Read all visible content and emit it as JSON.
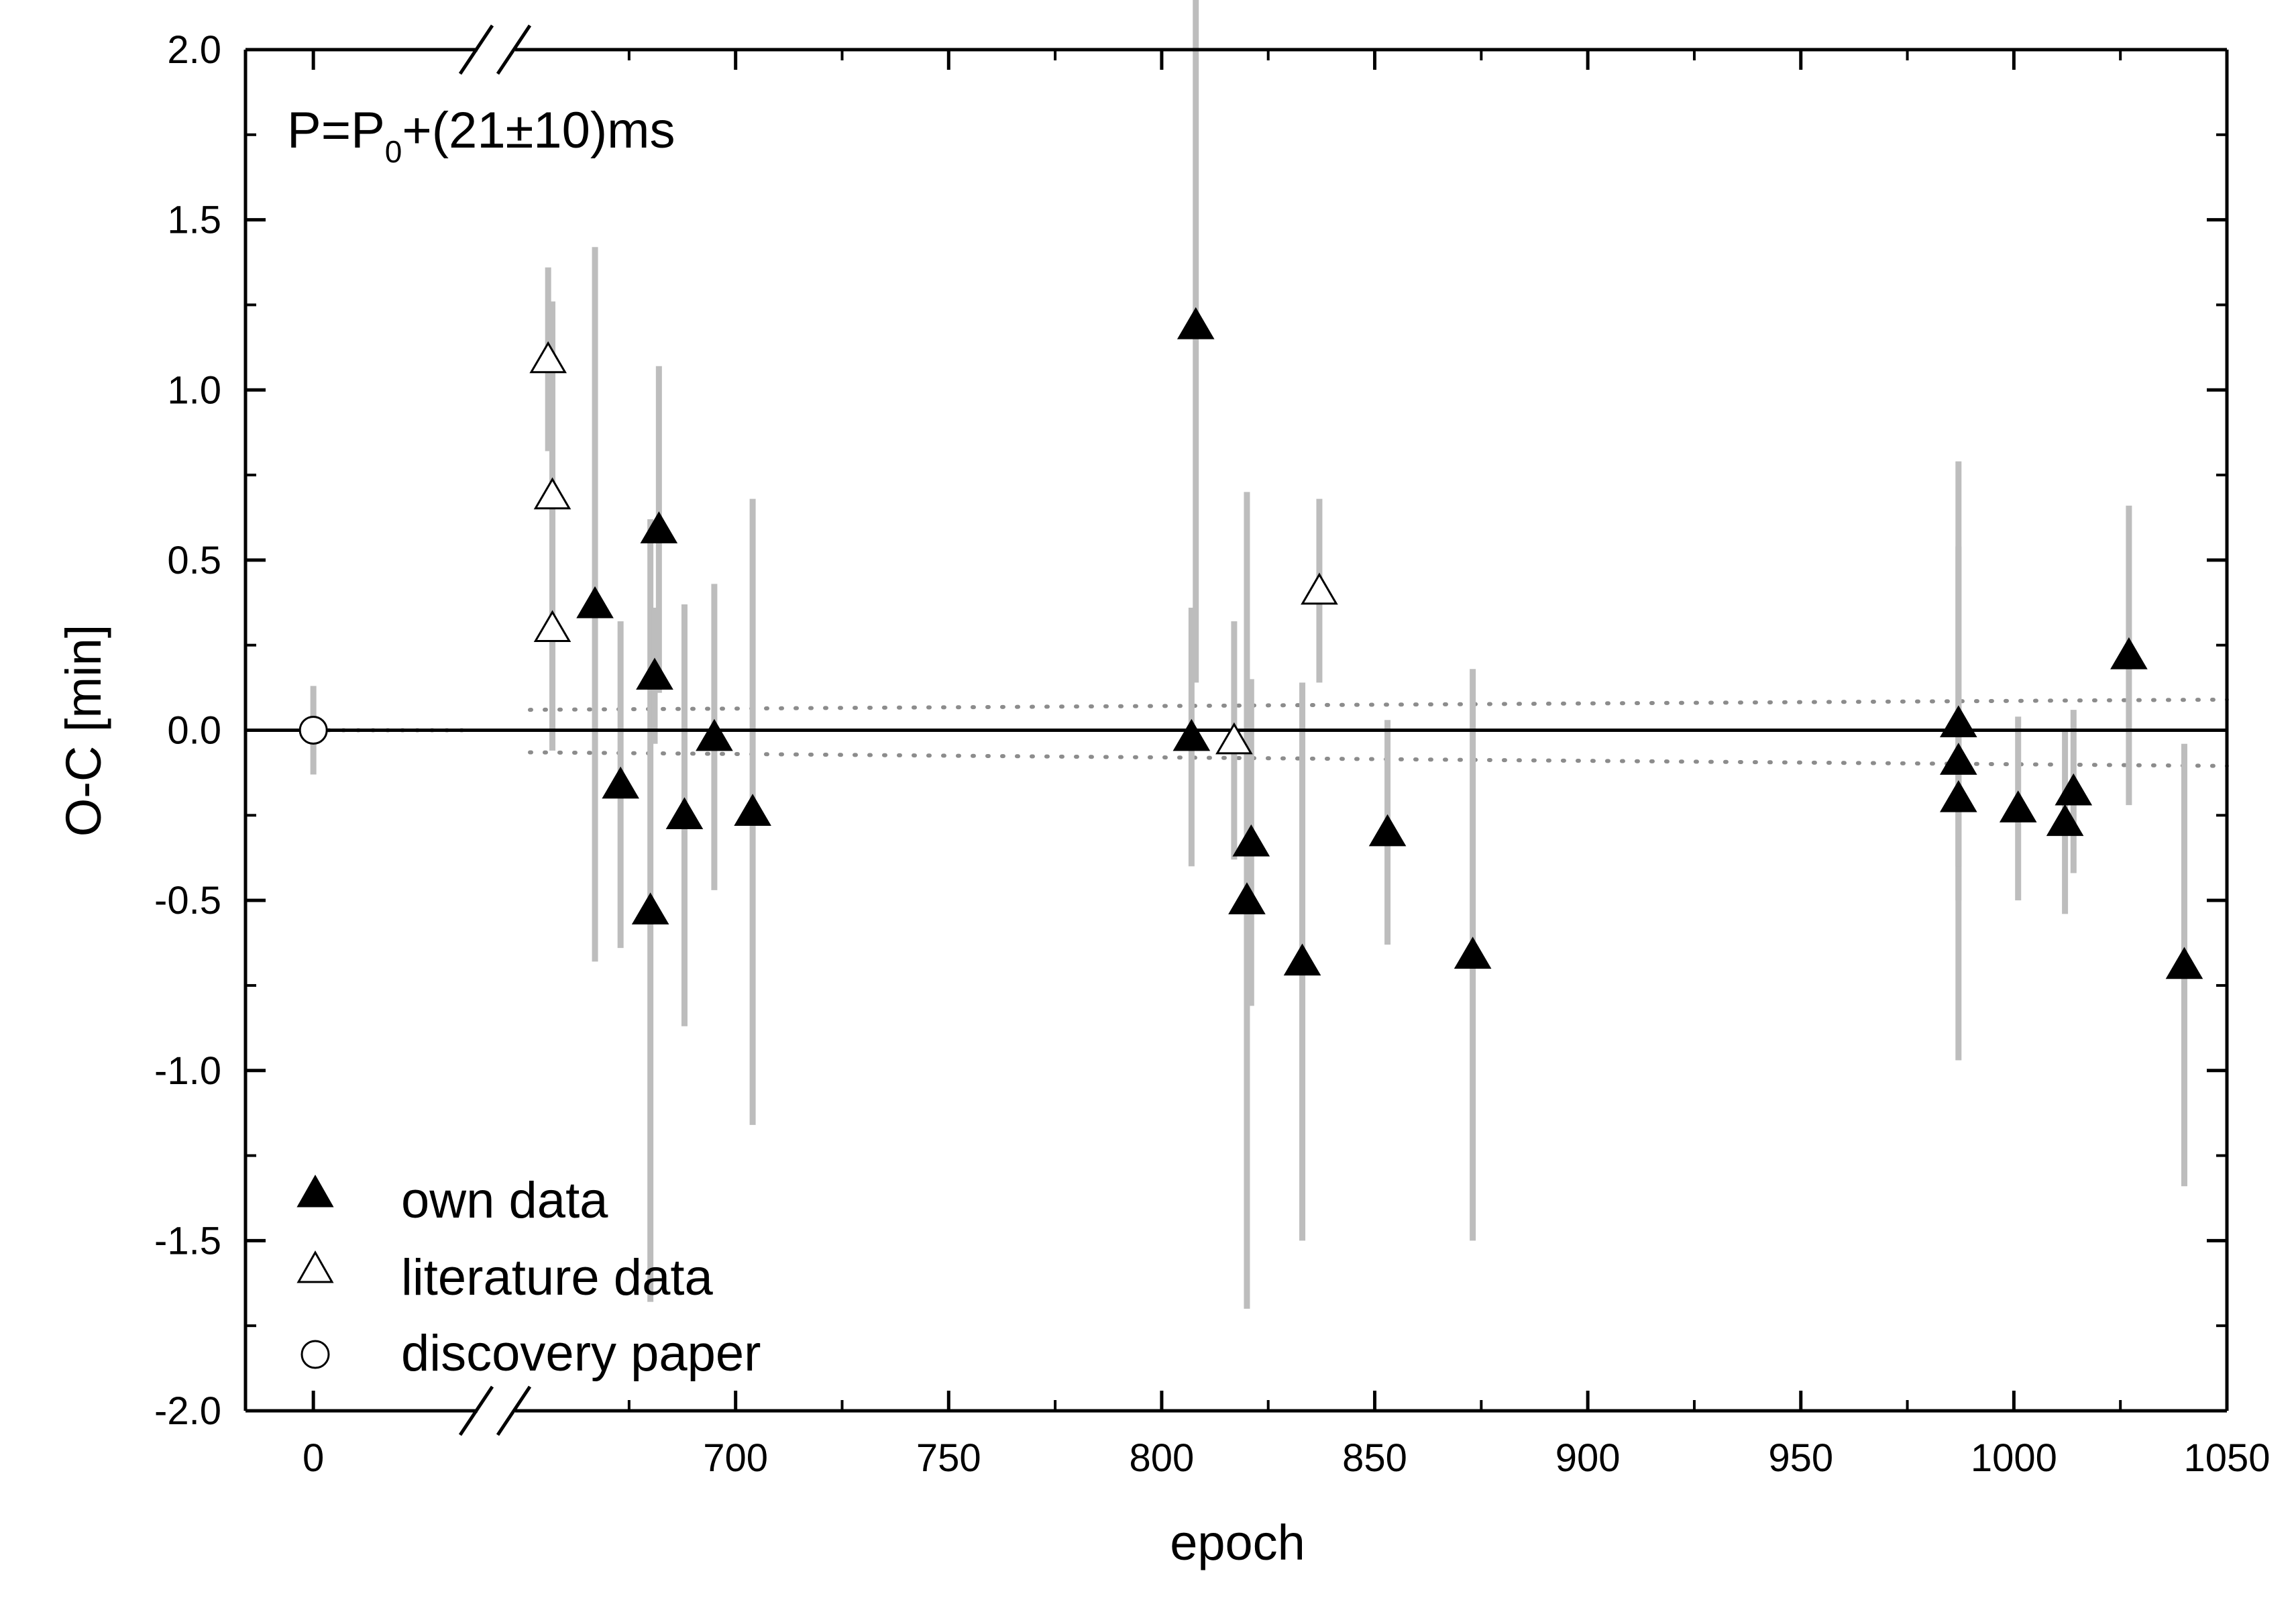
{
  "chart_data": {
    "type": "scatter",
    "xlabel": "epoch",
    "ylabel": "O-C [min]",
    "annotation": {
      "main": "P=P",
      "sub": "0",
      "rest": "+(21±10)ms"
    },
    "ylim": [
      -2.0,
      2.0
    ],
    "x_axis": {
      "broken": true,
      "left_segment": {
        "range": [
          -19,
          55
        ],
        "ticks": [
          0
        ]
      },
      "right_segment": {
        "range": [
          647,
          1050
        ],
        "ticks": [
          700,
          750,
          800,
          850,
          900,
          950,
          1000,
          1050
        ]
      }
    },
    "y_ticks": [
      "2.0",
      "1.5",
      "1.0",
      "0.5",
      "0.0",
      "-0.5",
      "-1.0",
      "-1.5",
      "-2.0"
    ],
    "x_tick_labels": [
      "0",
      "700",
      "750",
      "800",
      "850",
      "900",
      "950",
      "1000",
      "1050"
    ],
    "legend": {
      "position": "bottom-left",
      "entries": [
        "own data",
        "literature data",
        "discovery paper"
      ]
    },
    "reference_line": {
      "y": 0.0,
      "style": "solid"
    },
    "uncertainty_band": {
      "style": "dotted",
      "left": {
        "x": 0,
        "half_width": 0.0
      },
      "right": {
        "x0": 647,
        "x1": 1050,
        "lower": [
          -0.065,
          -0.105
        ],
        "upper": [
          0.06,
          0.09
        ]
      }
    },
    "series": [
      {
        "name": "own data",
        "marker": "filled-triangle",
        "points": [
          {
            "x": 667,
            "y": 0.37,
            "err": 1.05
          },
          {
            "x": 673,
            "y": -0.16,
            "err": 0.48
          },
          {
            "x": 680,
            "y": -0.53,
            "err": 1.15
          },
          {
            "x": 681,
            "y": 0.16,
            "err": 0.2
          },
          {
            "x": 682,
            "y": 0.59,
            "err": 0.48
          },
          {
            "x": 688,
            "y": -0.25,
            "err": 0.62
          },
          {
            "x": 695,
            "y": -0.02,
            "err": 0.45
          },
          {
            "x": 704,
            "y": -0.24,
            "err": 0.92
          },
          {
            "x": 807,
            "y": -0.02,
            "err": 0.38
          },
          {
            "x": 808,
            "y": 1.19,
            "err": 1.05
          },
          {
            "x": 820,
            "y": -0.5,
            "err": 1.2
          },
          {
            "x": 821,
            "y": -0.33,
            "err": 0.48
          },
          {
            "x": 833,
            "y": -0.68,
            "err": 0.82
          },
          {
            "x": 853,
            "y": -0.3,
            "err": 0.33
          },
          {
            "x": 873,
            "y": -0.66,
            "err": 0.84
          },
          {
            "x": 987,
            "y": 0.02,
            "err": 0.52
          },
          {
            "x": 987,
            "y": -0.09,
            "err": 0.88
          },
          {
            "x": 987,
            "y": -0.2,
            "err": 0.2
          },
          {
            "x": 1001,
            "y": -0.23,
            "err": 0.27
          },
          {
            "x": 1012,
            "y": -0.27,
            "err": 0.27
          },
          {
            "x": 1014,
            "y": -0.18,
            "err": 0.24
          },
          {
            "x": 1027,
            "y": 0.22,
            "err": 0.44
          },
          {
            "x": 1040,
            "y": -0.69,
            "err": 0.65
          }
        ]
      },
      {
        "name": "literature data",
        "marker": "open-triangle",
        "points": [
          {
            "x": 656,
            "y": 1.09,
            "err": 0.27
          },
          {
            "x": 657,
            "y": 0.69,
            "err": 0.57
          },
          {
            "x": 657,
            "y": 0.3,
            "err": 0.36
          },
          {
            "x": 817,
            "y": -0.03,
            "err": 0.35
          },
          {
            "x": 837,
            "y": 0.41,
            "err": 0.27
          }
        ]
      },
      {
        "name": "discovery paper",
        "marker": "open-circle",
        "points": [
          {
            "x": 0,
            "y": 0.0,
            "err": 0.13
          }
        ]
      }
    ]
  }
}
